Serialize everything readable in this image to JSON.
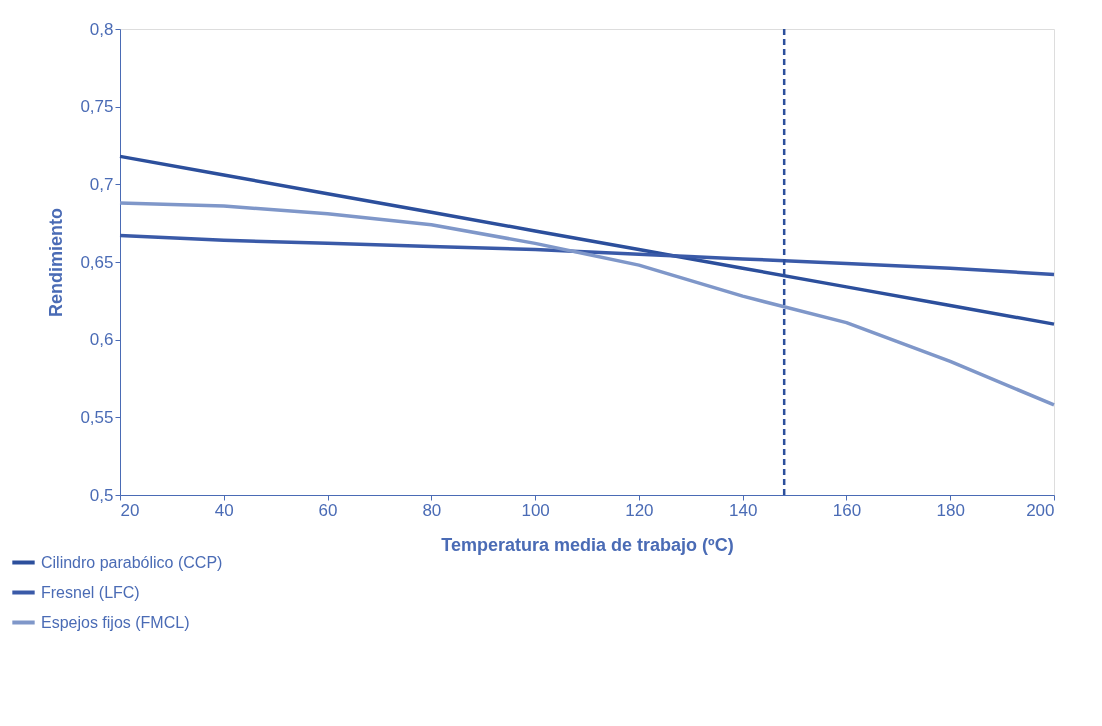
{
  "chart_data": {
    "type": "line",
    "xlabel": "Temperatura media de trabajo (ºC)",
    "ylabel": "Rendimiento",
    "x": [
      20,
      40,
      60,
      80,
      100,
      120,
      140,
      160,
      180,
      200
    ],
    "series": [
      {
        "name": "Cilindro parabólico (CCP)",
        "color": "#2c4f9c",
        "values": [
          0.718,
          0.706,
          0.694,
          0.682,
          0.67,
          0.658,
          0.646,
          0.634,
          0.622,
          0.61
        ]
      },
      {
        "name": "Fresnel (LFC)",
        "color": "#3a5aa8",
        "values": [
          0.667,
          0.664,
          0.662,
          0.66,
          0.658,
          0.655,
          0.652,
          0.649,
          0.646,
          0.642
        ]
      },
      {
        "name": "Espejos fijos (FMCL)",
        "color": "#7f97c9",
        "values": [
          0.688,
          0.686,
          0.681,
          0.674,
          0.662,
          0.648,
          0.628,
          0.611,
          0.586,
          0.558
        ]
      }
    ],
    "xlim": [
      20,
      200
    ],
    "xticks": [
      20,
      40,
      60,
      80,
      100,
      120,
      140,
      160,
      180,
      200
    ],
    "ylim": [
      0.5,
      0.8
    ],
    "yticks": [
      {
        "value": 0.5,
        "label": "0,5"
      },
      {
        "value": 0.55,
        "label": "0,55"
      },
      {
        "value": 0.6,
        "label": "0,6"
      },
      {
        "value": 0.65,
        "label": "0,65"
      },
      {
        "value": 0.7,
        "label": "0,7"
      },
      {
        "value": 0.75,
        "label": "0,75"
      },
      {
        "value": 0.8,
        "label": "0,8"
      }
    ],
    "ref_lines": [
      {
        "axis": "x",
        "value": 148,
        "color": "#2c4f9c",
        "line_style": "dashed"
      }
    ],
    "grid": false,
    "legend": "bottom left",
    "line_style": "solid",
    "marker": "none"
  }
}
